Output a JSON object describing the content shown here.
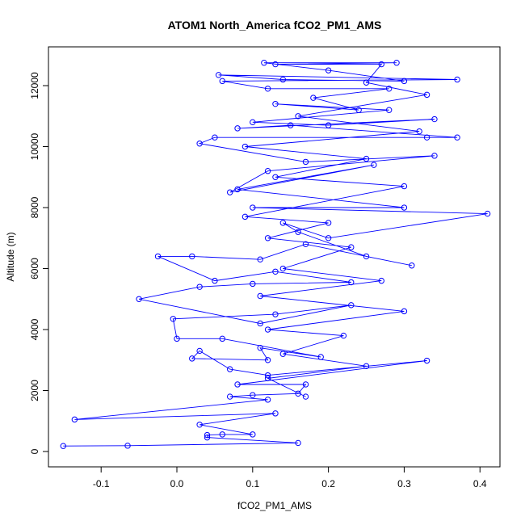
{
  "chart_data": {
    "type": "line",
    "title": "ATOM1 North_America fCO2_PM1_AMS",
    "xlabel": "fCO2_PM1_AMS",
    "ylabel": "Altitude (m)",
    "xlim": [
      -0.1695,
      0.4264
    ],
    "ylim": [
      -503,
      13272
    ],
    "xticks": [
      -0.1,
      {
        "value": 0,
        "label": "0.0"
      },
      0.1,
      0.2,
      0.3,
      0.4
    ],
    "yticks": [
      0,
      2000,
      4000,
      6000,
      8000,
      10000,
      12000
    ],
    "color": "#0000ff",
    "markers": true,
    "x": [
      -0.15,
      -0.065,
      0.16,
      0.04,
      0.04,
      0.06,
      0.1,
      0.03,
      0.13,
      -0.135,
      0.12,
      0.07,
      0.1,
      0.16,
      0.17,
      0.08,
      0.33,
      0.12,
      0.07,
      0.03,
      0.02,
      0.12,
      0.11,
      0.19,
      0.06,
      0.0,
      -0.005,
      0.13,
      0.23,
      0.11,
      -0.05,
      0.03,
      0.1,
      0.23,
      0.13,
      0.05,
      -0.025,
      0.02,
      0.11,
      0.17,
      0.31,
      0.25,
      0.16,
      0.14,
      0.2,
      0.41,
      0.1,
      0.3,
      0.08,
      0.26,
      0.07,
      0.12,
      0.34,
      0.17,
      0.03,
      0.05,
      0.33,
      0.37,
      0.15,
      0.08,
      0.34,
      0.2,
      0.1,
      0.28,
      0.13,
      0.24,
      0.18,
      0.28,
      0.12,
      0.06,
      0.37,
      0.055,
      0.14,
      0.3,
      0.2,
      0.115,
      0.29,
      0.13,
      0.27,
      0.25,
      0.33,
      0.16,
      0.32,
      0.09,
      0.25,
      0.13,
      0.3,
      0.09,
      0.2,
      0.12,
      0.23,
      0.14,
      0.27,
      0.11,
      0.3,
      0.12,
      0.22,
      0.14,
      0.25,
      0.12,
      0.17
    ],
    "values": [
      180,
      190,
      280,
      460,
      540,
      560,
      560,
      880,
      1250,
      1050,
      1700,
      1800,
      1850,
      1900,
      2200,
      2200,
      2980,
      2500,
      2700,
      3300,
      3050,
      3000,
      3400,
      3100,
      3700,
      3700,
      4350,
      4500,
      4800,
      4200,
      5000,
      5400,
      5500,
      5550,
      5900,
      5600,
      6400,
      6400,
      6300,
      6800,
      6100,
      6400,
      7200,
      7500,
      7000,
      7800,
      8000,
      8000,
      8600,
      9400,
      8500,
      9200,
      9700,
      9500,
      10100,
      10300,
      10300,
      10300,
      10700,
      10600,
      10900,
      10700,
      10800,
      11200,
      11400,
      11200,
      11600,
      11900,
      11900,
      12150,
      12200,
      12350,
      12200,
      12150,
      12500,
      12750,
      12750,
      12700,
      12700,
      12100,
      11700,
      11000,
      10500,
      10000,
      9600,
      9000,
      8700,
      7700,
      7500,
      7000,
      6700,
      6000,
      5600,
      5100,
      4600,
      4000,
      3800,
      3200,
      2800,
      2400,
      1800
    ]
  }
}
